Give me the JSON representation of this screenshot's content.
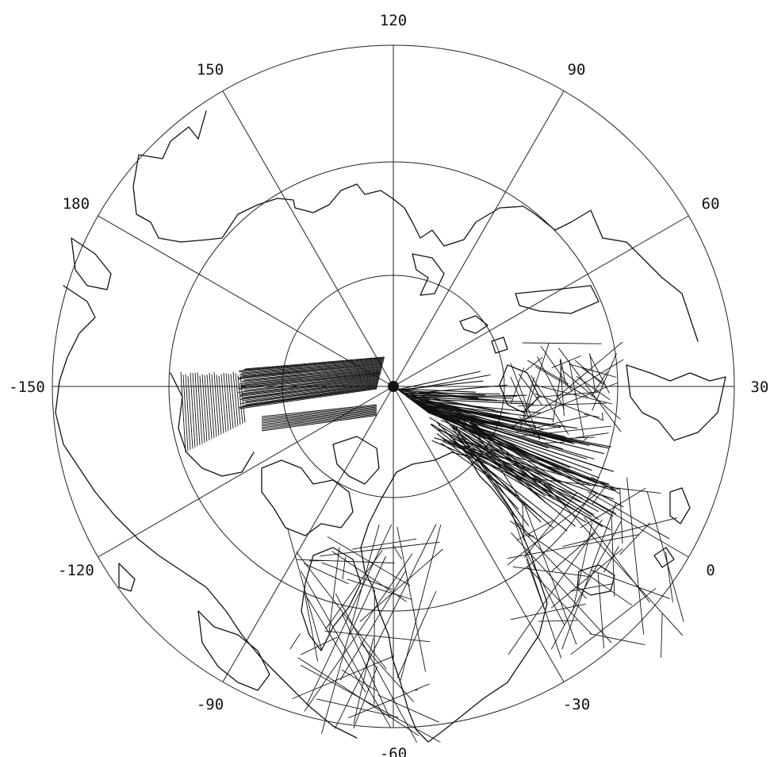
{
  "map": {
    "projection": "north polar stereographic",
    "longitude_labels": [
      {
        "id": "lon-120",
        "text": "120",
        "deg": 120
      },
      {
        "id": "lon-90",
        "text": "90",
        "deg": 90
      },
      {
        "id": "lon-60",
        "text": "60",
        "deg": 60
      },
      {
        "id": "lon-30",
        "text": "30",
        "deg": 30
      },
      {
        "id": "lon-0",
        "text": "0",
        "deg": 0
      },
      {
        "id": "lon-neg30",
        "text": "-30",
        "deg": -30
      },
      {
        "id": "lon-neg60",
        "text": "-60",
        "deg": -60
      },
      {
        "id": "lon-neg90",
        "text": "-90",
        "deg": -90
      },
      {
        "id": "lon-neg120",
        "text": "-120",
        "deg": -120
      },
      {
        "id": "lon-neg150",
        "text": "-150",
        "deg": -150
      },
      {
        "id": "lon-180",
        "text": "180",
        "deg": 180
      },
      {
        "id": "lon-150",
        "text": "150",
        "deg": 150
      }
    ],
    "latitude_circles": 3,
    "colors": {
      "lines": "#111111",
      "background": "#ffffff"
    }
  }
}
